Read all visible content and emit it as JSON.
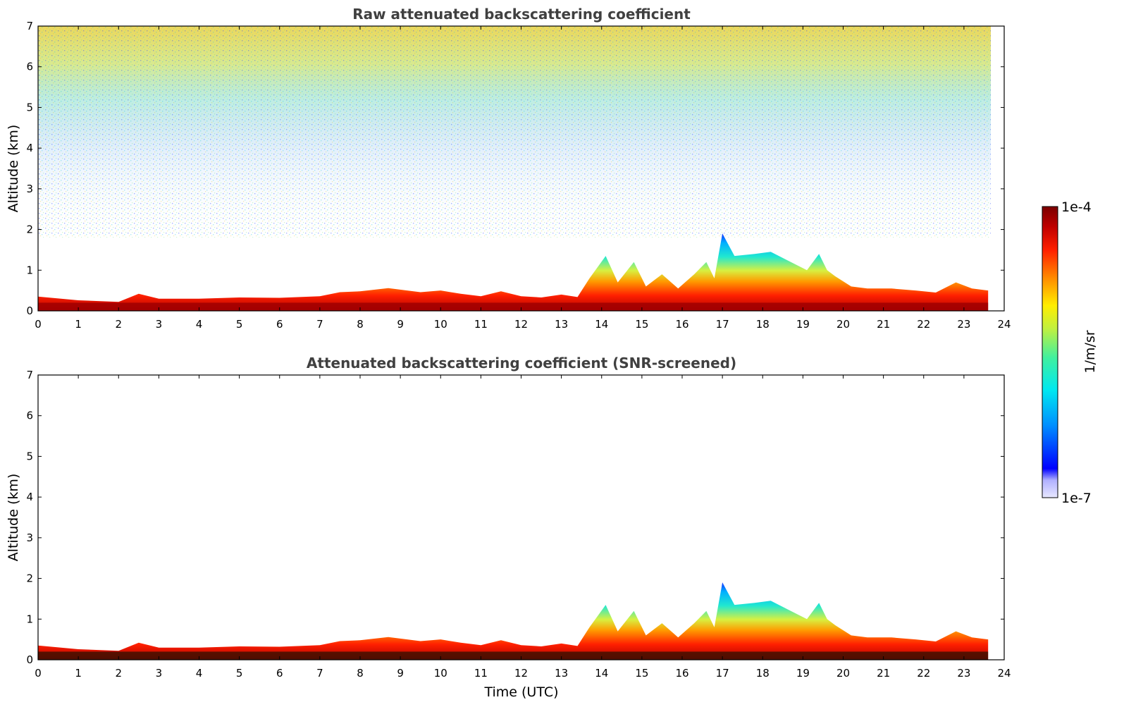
{
  "chart_data": [
    {
      "type": "heatmap",
      "title": "Raw attenuated backscattering coefficient",
      "xlabel": "",
      "ylabel": "Altitude (km)",
      "xlim": [
        0,
        24
      ],
      "ylim": [
        0,
        7
      ],
      "x_ticks": [
        "0",
        "1",
        "2",
        "3",
        "4",
        "5",
        "6",
        "7",
        "8",
        "9",
        "10",
        "11",
        "12",
        "13",
        "14",
        "15",
        "16",
        "17",
        "18",
        "19",
        "20",
        "21",
        "22",
        "23",
        "24"
      ],
      "y_ticks": [
        "0",
        "1",
        "2",
        "3",
        "4",
        "5",
        "6",
        "7"
      ],
      "data_end_hour": 23.6,
      "noise": "high-altitude noise from 2-7 km, increasing with altitude",
      "boundary_layer_top_km": [
        [
          0,
          0.35
        ],
        [
          1,
          0.26
        ],
        [
          2,
          0.22
        ],
        [
          2.5,
          0.42
        ],
        [
          3,
          0.3
        ],
        [
          4,
          0.3
        ],
        [
          5,
          0.33
        ],
        [
          6,
          0.32
        ],
        [
          7,
          0.36
        ],
        [
          7.5,
          0.46
        ],
        [
          8,
          0.48
        ],
        [
          8.7,
          0.56
        ],
        [
          9.5,
          0.46
        ],
        [
          10,
          0.5
        ],
        [
          10.5,
          0.42
        ],
        [
          11,
          0.36
        ],
        [
          11.5,
          0.48
        ],
        [
          12,
          0.36
        ],
        [
          12.5,
          0.33
        ],
        [
          13,
          0.4
        ],
        [
          13.4,
          0.34
        ],
        [
          13.7,
          0.8
        ],
        [
          14.1,
          1.35
        ],
        [
          14.4,
          0.7
        ],
        [
          14.8,
          1.2
        ],
        [
          15.1,
          0.6
        ],
        [
          15.5,
          0.9
        ],
        [
          15.9,
          0.55
        ],
        [
          16.3,
          0.9
        ],
        [
          16.6,
          1.2
        ],
        [
          16.8,
          0.8
        ],
        [
          17.0,
          1.9
        ],
        [
          17.3,
          1.35
        ],
        [
          17.8,
          1.4
        ],
        [
          18.2,
          1.45
        ],
        [
          18.7,
          1.2
        ],
        [
          19.1,
          1.0
        ],
        [
          19.4,
          1.4
        ],
        [
          19.6,
          1.0
        ],
        [
          19.8,
          0.85
        ],
        [
          20.2,
          0.6
        ],
        [
          20.6,
          0.55
        ],
        [
          21.2,
          0.55
        ],
        [
          21.8,
          0.5
        ],
        [
          22.3,
          0.45
        ],
        [
          22.8,
          0.7
        ],
        [
          23.2,
          0.55
        ],
        [
          23.6,
          0.5
        ]
      ]
    },
    {
      "type": "heatmap",
      "title": "Attenuated backscattering coefficient (SNR-screened)",
      "xlabel": "Time (UTC)",
      "ylabel": "Altitude (km)",
      "xlim": [
        0,
        24
      ],
      "ylim": [
        0,
        7
      ],
      "x_ticks": [
        "0",
        "1",
        "2",
        "3",
        "4",
        "5",
        "6",
        "7",
        "8",
        "9",
        "10",
        "11",
        "12",
        "13",
        "14",
        "15",
        "16",
        "17",
        "18",
        "19",
        "20",
        "21",
        "22",
        "23",
        "24"
      ],
      "y_ticks": [
        "0",
        "1",
        "2",
        "3",
        "4",
        "5",
        "6",
        "7"
      ],
      "data_end_hour": 23.6,
      "noise": "removed (SNR-screened)",
      "boundary_layer_top_km": "same as panel 1"
    }
  ],
  "colorbar": {
    "label": "1/m/sr",
    "max_label": "1e-4",
    "min_label": "1e-7",
    "colormap": [
      "#e8e8ff",
      "#c8c8ff",
      "#0000ff",
      "#0080ff",
      "#00e0ff",
      "#20f0c0",
      "#a0f060",
      "#ffff00",
      "#ffa000",
      "#ff3000",
      "#c00000",
      "#800000"
    ]
  }
}
